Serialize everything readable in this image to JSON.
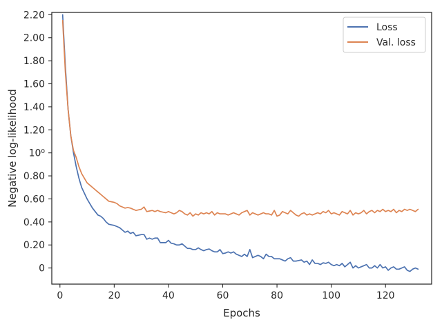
{
  "chart_data": {
    "type": "line",
    "title": "",
    "xlabel": "Epochs",
    "ylabel": "Negative log-likelihood",
    "xlim": [
      -3,
      137
    ],
    "ylim": [
      -0.14,
      2.22
    ],
    "x_ticks": [
      0,
      20,
      40,
      60,
      80,
      100,
      120
    ],
    "y_ticks": [
      {
        "value": 0,
        "label": "0"
      },
      {
        "value": 0.2,
        "label": "0.20"
      },
      {
        "value": 0.4,
        "label": "0.40"
      },
      {
        "value": 0.6,
        "label": "0.60"
      },
      {
        "value": 0.8,
        "label": "0.80"
      },
      {
        "value": 1.0,
        "label": "10⁰"
      },
      {
        "value": 1.2,
        "label": "1.20"
      },
      {
        "value": 1.4,
        "label": "1.40"
      },
      {
        "value": 1.6,
        "label": "1.60"
      },
      {
        "value": 1.8,
        "label": "1.80"
      },
      {
        "value": 2.0,
        "label": "2.00"
      },
      {
        "value": 2.2,
        "label": "2.20"
      }
    ],
    "grid": false,
    "legend_position": "top-right",
    "series": [
      {
        "name": "Loss",
        "color": "#4c72b0",
        "x": [
          1,
          2,
          3,
          4,
          5,
          6,
          7,
          8,
          9,
          10,
          11,
          12,
          13,
          14,
          15,
          16,
          17,
          18,
          19,
          20,
          21,
          22,
          23,
          24,
          25,
          26,
          27,
          28,
          29,
          30,
          31,
          32,
          33,
          34,
          35,
          36,
          37,
          38,
          39,
          40,
          41,
          42,
          43,
          44,
          45,
          46,
          47,
          48,
          49,
          50,
          51,
          52,
          53,
          54,
          55,
          56,
          57,
          58,
          59,
          60,
          61,
          62,
          63,
          64,
          65,
          66,
          67,
          68,
          69,
          70,
          71,
          72,
          73,
          74,
          75,
          76,
          77,
          78,
          79,
          80,
          81,
          82,
          83,
          84,
          85,
          86,
          87,
          88,
          89,
          90,
          91,
          92,
          93,
          94,
          95,
          96,
          97,
          98,
          99,
          100,
          101,
          102,
          103,
          104,
          105,
          106,
          107,
          108,
          109,
          110,
          111,
          112,
          113,
          114,
          115,
          116,
          117,
          118,
          119,
          120,
          121,
          122,
          123,
          124,
          125,
          126,
          127,
          128,
          129,
          130,
          131,
          132
        ],
        "y": [
          2.2,
          1.75,
          1.38,
          1.15,
          1.0,
          0.88,
          0.78,
          0.7,
          0.65,
          0.6,
          0.56,
          0.52,
          0.49,
          0.46,
          0.45,
          0.43,
          0.4,
          0.38,
          0.375,
          0.37,
          0.36,
          0.35,
          0.33,
          0.31,
          0.32,
          0.3,
          0.31,
          0.28,
          0.285,
          0.29,
          0.29,
          0.25,
          0.26,
          0.25,
          0.26,
          0.26,
          0.22,
          0.22,
          0.22,
          0.24,
          0.215,
          0.21,
          0.2,
          0.2,
          0.21,
          0.19,
          0.17,
          0.17,
          0.16,
          0.16,
          0.175,
          0.16,
          0.15,
          0.16,
          0.165,
          0.15,
          0.14,
          0.14,
          0.16,
          0.125,
          0.13,
          0.14,
          0.13,
          0.14,
          0.12,
          0.11,
          0.1,
          0.12,
          0.1,
          0.16,
          0.09,
          0.1,
          0.11,
          0.1,
          0.08,
          0.12,
          0.1,
          0.1,
          0.08,
          0.08,
          0.08,
          0.07,
          0.06,
          0.08,
          0.09,
          0.06,
          0.06,
          0.065,
          0.07,
          0.05,
          0.06,
          0.03,
          0.07,
          0.04,
          0.04,
          0.03,
          0.045,
          0.04,
          0.05,
          0.03,
          0.02,
          0.03,
          0.02,
          0.04,
          0.01,
          0.03,
          0.05,
          0.0,
          0.02,
          0.0,
          0.01,
          0.02,
          0.03,
          0.0,
          0.0,
          0.02,
          0.0,
          0.03,
          0.0,
          0.01,
          -0.02,
          0.0,
          0.01,
          -0.01,
          -0.01,
          0.0,
          0.01,
          -0.02,
          -0.03,
          -0.01,
          0.0,
          -0.01
        ]
      },
      {
        "name": "Val. loss",
        "color": "#dd8452",
        "x": [
          1,
          2,
          3,
          4,
          5,
          6,
          7,
          8,
          9,
          10,
          11,
          12,
          13,
          14,
          15,
          16,
          17,
          18,
          19,
          20,
          21,
          22,
          23,
          24,
          25,
          26,
          27,
          28,
          29,
          30,
          31,
          32,
          33,
          34,
          35,
          36,
          37,
          38,
          39,
          40,
          41,
          42,
          43,
          44,
          45,
          46,
          47,
          48,
          49,
          50,
          51,
          52,
          53,
          54,
          55,
          56,
          57,
          58,
          59,
          60,
          61,
          62,
          63,
          64,
          65,
          66,
          67,
          68,
          69,
          70,
          71,
          72,
          73,
          74,
          75,
          76,
          77,
          78,
          79,
          80,
          81,
          82,
          83,
          84,
          85,
          86,
          87,
          88,
          89,
          90,
          91,
          92,
          93,
          94,
          95,
          96,
          97,
          98,
          99,
          100,
          101,
          102,
          103,
          104,
          105,
          106,
          107,
          108,
          109,
          110,
          111,
          112,
          113,
          114,
          115,
          116,
          117,
          118,
          119,
          120,
          121,
          122,
          123,
          124,
          125,
          126,
          127,
          128,
          129,
          130,
          131,
          132
        ],
        "y": [
          2.15,
          1.7,
          1.38,
          1.15,
          1.02,
          0.96,
          0.88,
          0.82,
          0.78,
          0.74,
          0.72,
          0.7,
          0.68,
          0.66,
          0.64,
          0.62,
          0.6,
          0.58,
          0.575,
          0.57,
          0.56,
          0.54,
          0.53,
          0.52,
          0.525,
          0.52,
          0.51,
          0.5,
          0.505,
          0.51,
          0.53,
          0.49,
          0.495,
          0.5,
          0.49,
          0.5,
          0.49,
          0.485,
          0.48,
          0.49,
          0.48,
          0.47,
          0.48,
          0.5,
          0.49,
          0.47,
          0.46,
          0.48,
          0.45,
          0.47,
          0.46,
          0.48,
          0.47,
          0.48,
          0.47,
          0.49,
          0.46,
          0.48,
          0.47,
          0.47,
          0.47,
          0.46,
          0.47,
          0.48,
          0.47,
          0.46,
          0.48,
          0.49,
          0.5,
          0.46,
          0.48,
          0.47,
          0.46,
          0.47,
          0.48,
          0.47,
          0.47,
          0.46,
          0.5,
          0.45,
          0.46,
          0.49,
          0.48,
          0.47,
          0.5,
          0.48,
          0.46,
          0.45,
          0.47,
          0.48,
          0.46,
          0.47,
          0.46,
          0.47,
          0.48,
          0.47,
          0.49,
          0.48,
          0.5,
          0.47,
          0.48,
          0.47,
          0.46,
          0.49,
          0.48,
          0.47,
          0.5,
          0.46,
          0.48,
          0.47,
          0.48,
          0.5,
          0.47,
          0.49,
          0.5,
          0.48,
          0.5,
          0.49,
          0.51,
          0.49,
          0.5,
          0.49,
          0.51,
          0.48,
          0.5,
          0.49,
          0.51,
          0.5,
          0.51,
          0.5,
          0.49,
          0.51
        ]
      }
    ]
  }
}
